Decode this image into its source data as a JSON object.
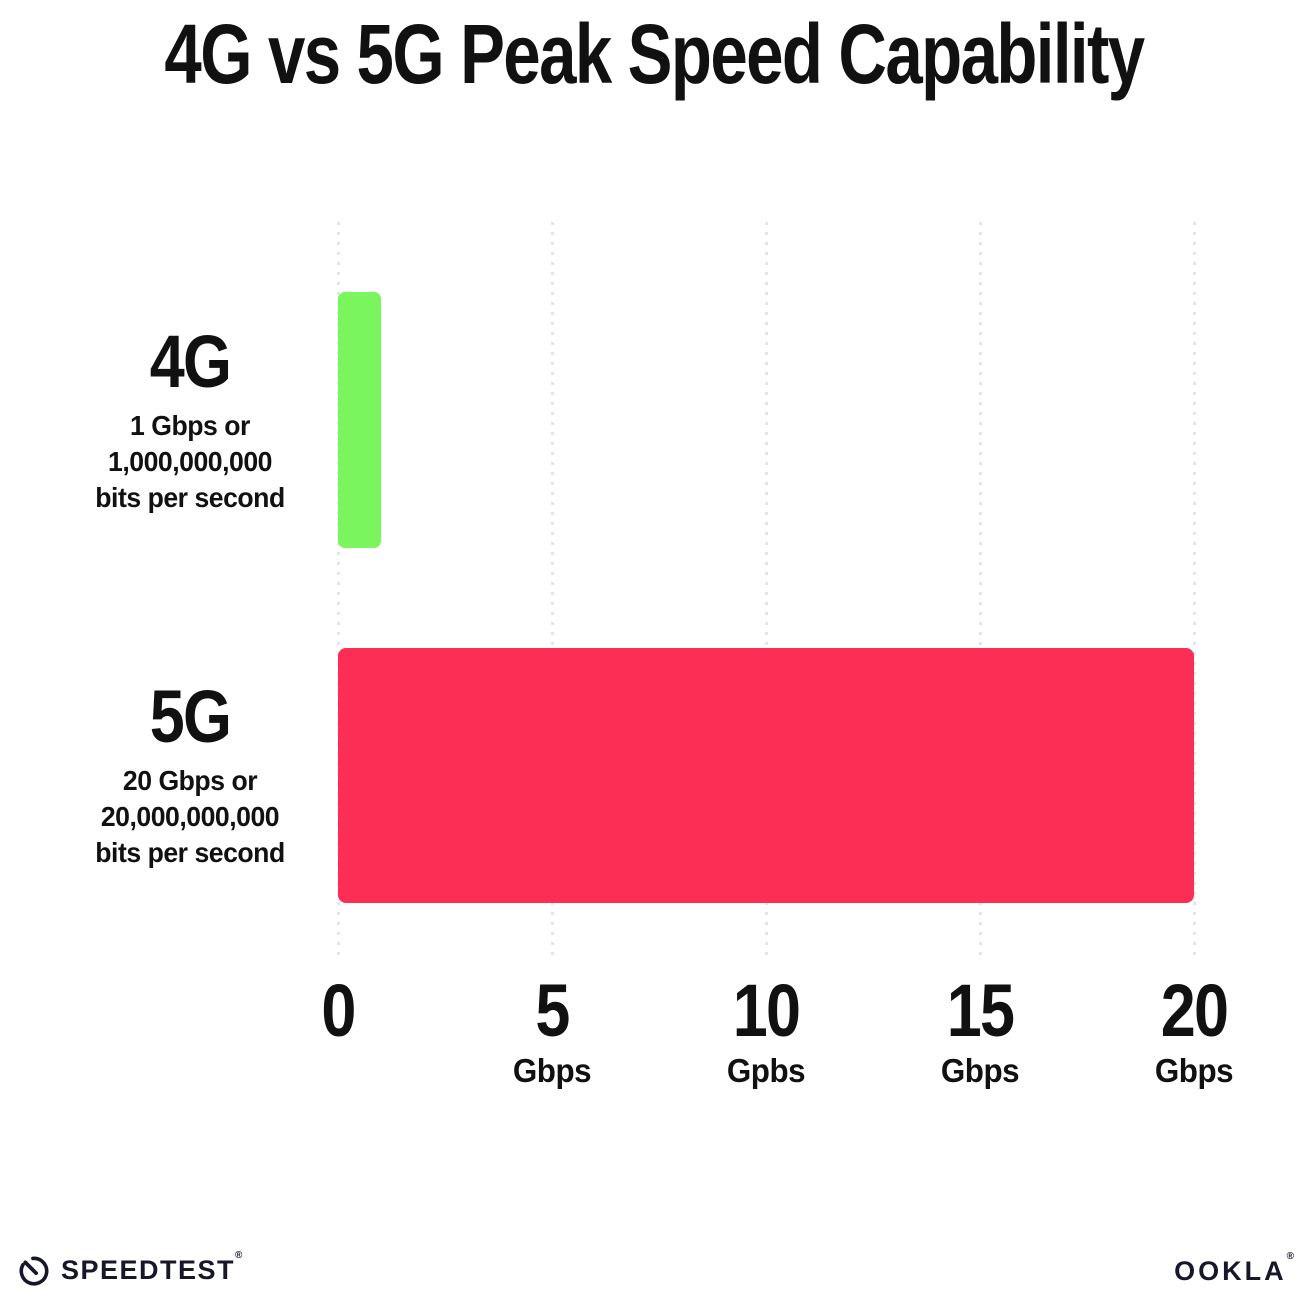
{
  "colors": {
    "background": "#FFFFFF",
    "text": "#111111",
    "gridline": "#E4E4EE",
    "bar_4g_green": "#7BF55D",
    "bar_5g_pink": "#FD2E55",
    "logo_ink": "#16182A"
  },
  "chart_data": {
    "type": "bar",
    "orientation": "horizontal",
    "title": "4G vs 5G Peak Speed Capability",
    "xlabel": "",
    "ylabel": "",
    "unit": "Gbps",
    "xlim": [
      0,
      20
    ],
    "grid": "vertical dotted gridlines at 0, 5, 10, 15, 20",
    "legend": "none",
    "categories": [
      "4G",
      "5G"
    ],
    "values": [
      1,
      20
    ],
    "series": [
      {
        "label": "4G",
        "value_gbps": 1,
        "color": "#7BF55D",
        "sub_lines": [
          "1 Gbps or",
          "1,000,000,000",
          "bits per second"
        ]
      },
      {
        "label": "5G",
        "value_gbps": 20,
        "color": "#FD2E55",
        "sub_lines": [
          "20 Gbps or",
          "20,000,000,000",
          "bits per second"
        ]
      }
    ],
    "x_ticks": [
      {
        "value": 0,
        "label": "0",
        "sublabel": ""
      },
      {
        "value": 5,
        "label": "5",
        "sublabel": "Gbps"
      },
      {
        "value": 10,
        "label": "10",
        "sublabel": "Gpbs"
      },
      {
        "value": 15,
        "label": "15",
        "sublabel": "Gbps"
      },
      {
        "value": 20,
        "label": "20",
        "sublabel": "Gbps"
      }
    ]
  },
  "footer": {
    "speedtest_wordmark": "SPEEDTEST",
    "speedtest_mark": "®",
    "ookla_wordmark": "OOKLA",
    "ookla_mark": "®"
  }
}
